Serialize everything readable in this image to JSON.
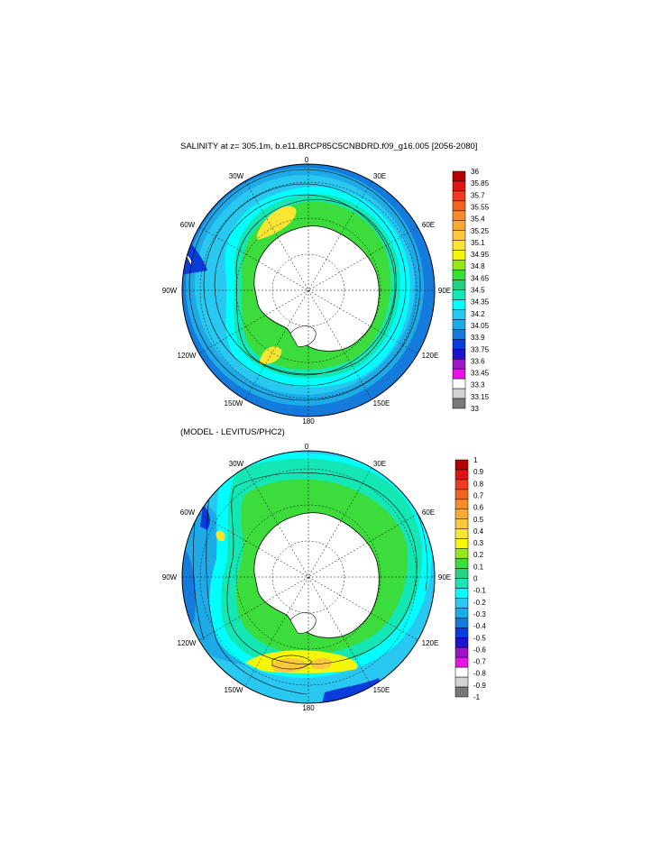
{
  "panels": [
    {
      "title": "SALINITY at z= 305.1m, b.e11.BRCP85C5CNBDRD.f09_g16.005 [2056-2080]",
      "colorbar": {
        "labels": [
          "36",
          "35.85",
          "35.7",
          "35.55",
          "35.4",
          "35.25",
          "35.1",
          "34.95",
          "34.8",
          "34.65",
          "34.5",
          "34.35",
          "34.2",
          "34.05",
          "33.9",
          "33.75",
          "33.6",
          "33.45",
          "33.3",
          "33.15",
          "33"
        ],
        "colors": [
          "#b40000",
          "#e11414",
          "#f03c1e",
          "#f0641e",
          "#f58c28",
          "#f5aa32",
          "#fac83c",
          "#fae632",
          "#f5f50a",
          "#96e61e",
          "#3cdc3c",
          "#23d282",
          "#14e6b4",
          "#00ffff",
          "#28c8f0",
          "#1eaae6",
          "#147adc",
          "#0a3cdc",
          "#1e14c8",
          "#a014c8",
          "#e614e6",
          "#ffffff",
          "#d2d2d2",
          "#787878"
        ]
      },
      "lon_labels": {
        "top": "0",
        "right_top": "30E",
        "right_upper": "60E",
        "right_mid": "90E",
        "right_lower": "120E",
        "right_bottom": "150E",
        "bottom": "180",
        "left_bottom": "150W",
        "left_lower": "120W",
        "left_mid": "90W",
        "left_upper": "60W",
        "left_top": "30W"
      }
    },
    {
      "title": "(MODEL - LEVITUS/PHC2)",
      "colorbar": {
        "labels": [
          "1",
          "0.9",
          "0.8",
          "0.7",
          "0.6",
          "0.5",
          "0.4",
          "0.3",
          "0.2",
          "0.1",
          "0",
          "-0.1",
          "-0.2",
          "-0.3",
          "-0.4",
          "-0.5",
          "-0.6",
          "-0.7",
          "-0.8",
          "-0.9",
          "-1"
        ],
        "colors": [
          "#b40000",
          "#e11414",
          "#f03c1e",
          "#f0641e",
          "#f58c28",
          "#f5aa32",
          "#fac83c",
          "#fae632",
          "#f5f50a",
          "#96e61e",
          "#3cdc3c",
          "#23d282",
          "#14e6b4",
          "#00ffff",
          "#28c8f0",
          "#1eaae6",
          "#147adc",
          "#0a3cdc",
          "#1e14c8",
          "#a014c8",
          "#e614e6",
          "#ffffff",
          "#d2d2d2",
          "#787878"
        ]
      },
      "lon_labels": {
        "top": "0",
        "right_top": "30E",
        "right_upper": "60E",
        "right_mid": "90E",
        "right_lower": "120E",
        "right_bottom": "150E",
        "bottom": "180",
        "left_bottom": "150W",
        "left_lower": "120W",
        "left_mid": "90W",
        "left_upper": "60W",
        "left_top": "30W"
      }
    }
  ]
}
